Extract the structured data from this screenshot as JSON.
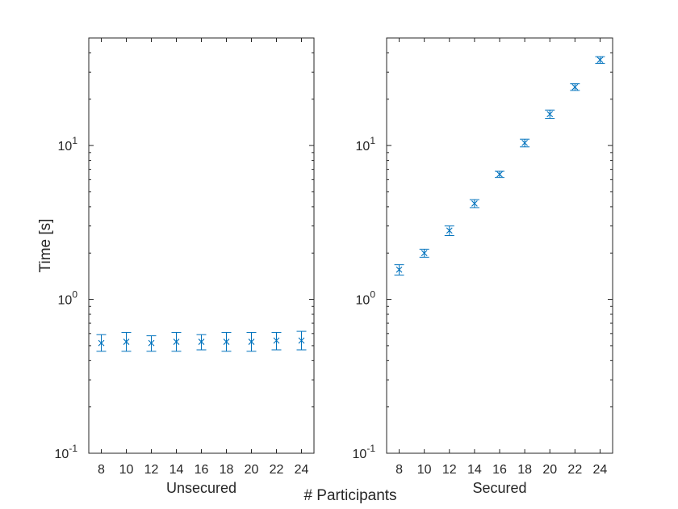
{
  "chart_data": {
    "type": "scatter",
    "scale": "log",
    "ylabel": "Time [s]",
    "shared_xlabel": "# Participants",
    "ylim": [
      0.1,
      50
    ],
    "y_ticks": [
      {
        "value": 0.1,
        "base": "10",
        "exp": "-1"
      },
      {
        "value": 1,
        "base": "10",
        "exp": "0"
      },
      {
        "value": 10,
        "base": "10",
        "exp": "1"
      }
    ],
    "color": "#0072bd",
    "panels": [
      {
        "xlabel": "Unsecured",
        "x": [
          8,
          10,
          12,
          14,
          16,
          18,
          20,
          22,
          24
        ],
        "y": [
          0.52,
          0.53,
          0.52,
          0.53,
          0.53,
          0.53,
          0.53,
          0.54,
          0.54
        ],
        "err_low": [
          0.46,
          0.46,
          0.46,
          0.46,
          0.47,
          0.46,
          0.46,
          0.47,
          0.47
        ],
        "err_high": [
          0.59,
          0.61,
          0.58,
          0.61,
          0.59,
          0.61,
          0.61,
          0.61,
          0.62
        ],
        "xlim": [
          7,
          25
        ],
        "xticks": [
          "8",
          "10",
          "12",
          "14",
          "16",
          "18",
          "20",
          "22",
          "24"
        ]
      },
      {
        "xlabel": "Secured",
        "x": [
          8,
          10,
          12,
          14,
          16,
          18,
          20,
          22,
          24
        ],
        "y": [
          1.56,
          2.0,
          2.8,
          4.2,
          6.5,
          10.4,
          16.0,
          24.0,
          36.0
        ],
        "err_low": [
          1.44,
          1.88,
          2.6,
          3.95,
          6.2,
          9.8,
          15.0,
          22.8,
          34.2
        ],
        "err_high": [
          1.68,
          2.12,
          3.0,
          4.45,
          6.8,
          11.0,
          17.0,
          25.2,
          37.8
        ],
        "xlim": [
          7,
          25
        ],
        "xticks": [
          "8",
          "10",
          "12",
          "14",
          "16",
          "18",
          "20",
          "22",
          "24"
        ]
      }
    ]
  }
}
